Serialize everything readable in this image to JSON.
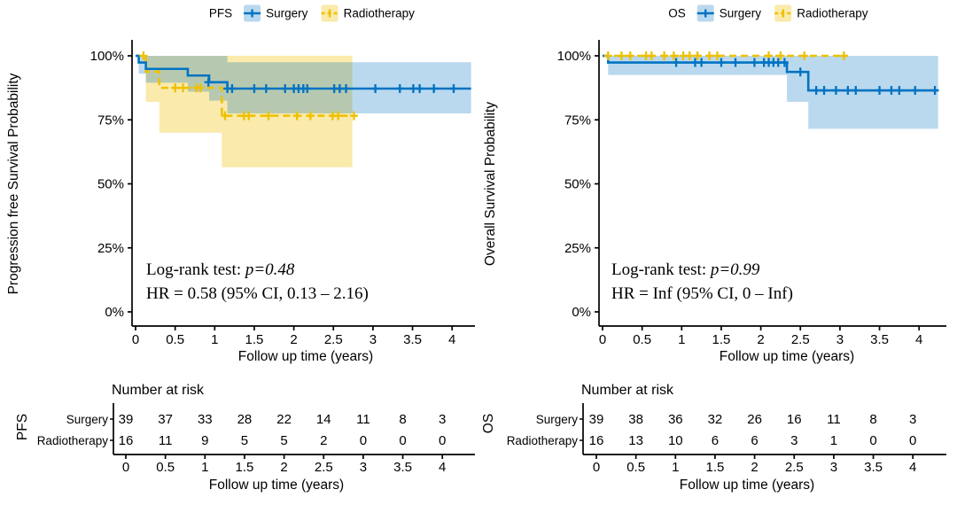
{
  "figure": {
    "background": "#ffffff"
  },
  "palette": {
    "surgery": "#0073C2",
    "radiotherapy": "#EFC000",
    "surgery_fill": "rgba(0,115,194,0.27)",
    "radiotherapy_fill": "rgba(239,192,0,0.33)",
    "axis": "#000000",
    "text": "#000000"
  },
  "chart_data": [
    {
      "type": "line",
      "subtype": "kaplan-meier-step",
      "id": "pfs",
      "legend_title": "PFS",
      "ylabel": "Progression free Survival Probability",
      "xlabel": "Follow up time (years)",
      "xlim": [
        0,
        4.3
      ],
      "ylim": [
        0,
        1
      ],
      "grid": false,
      "legend_position": "top",
      "xticks": [
        0,
        0.5,
        1,
        1.5,
        2,
        2.5,
        3,
        3.5,
        4
      ],
      "xtick_labels": [
        "0",
        "0.5",
        "1",
        "1.5",
        "2",
        "2.5",
        "3",
        "3.5",
        "4"
      ],
      "yticks": [
        0,
        0.25,
        0.5,
        0.75,
        1
      ],
      "ytick_labels": [
        "0%",
        "25%",
        "50%",
        "75%",
        "100%"
      ],
      "annotation": {
        "logrank_prefix": "Log-rank test: ",
        "logrank_p": "p=0.48",
        "hr": "HR = 0.58 (95% CI, 0.13 – 2.16)"
      },
      "series": [
        {
          "name": "Surgery",
          "color_key": "surgery",
          "dashed": false,
          "steps": [
            [
              0,
              1
            ],
            [
              0.04,
              0.974
            ],
            [
              0.13,
              0.949
            ],
            [
              0.66,
              0.923
            ],
            [
              0.93,
              0.897
            ],
            [
              1.16,
              0.872
            ]
          ],
          "end_time": 4.24,
          "censors": [
            [
              0.92,
              0.897
            ],
            [
              1.16,
              0.872
            ],
            [
              1.22,
              0.872
            ],
            [
              1.5,
              0.872
            ],
            [
              1.65,
              0.872
            ],
            [
              1.89,
              0.872
            ],
            [
              2.0,
              0.872
            ],
            [
              2.06,
              0.872
            ],
            [
              2.12,
              0.872
            ],
            [
              2.17,
              0.872
            ],
            [
              2.51,
              0.872
            ],
            [
              2.58,
              0.872
            ],
            [
              2.66,
              0.872
            ],
            [
              3.03,
              0.872
            ],
            [
              3.34,
              0.872
            ],
            [
              3.51,
              0.872
            ],
            [
              3.59,
              0.872
            ],
            [
              3.77,
              0.872
            ],
            [
              4.02,
              0.872
            ]
          ],
          "ci": [
            [
              0.04,
              0.93,
              1
            ],
            [
              0.13,
              0.895,
              1
            ],
            [
              0.66,
              0.86,
              1
            ],
            [
              0.93,
              0.825,
              1
            ],
            [
              1.16,
              0.775,
              0.975
            ]
          ],
          "ci_end": 4.24
        },
        {
          "name": "Radiotherapy",
          "color_key": "radiotherapy",
          "dashed": true,
          "steps": [
            [
              0,
              1
            ],
            [
              0.13,
              0.938
            ],
            [
              0.3,
              0.875
            ],
            [
              1.09,
              0.766
            ]
          ],
          "end_time": 2.76,
          "censors": [
            [
              0.1,
              1
            ],
            [
              0.5,
              0.875
            ],
            [
              0.6,
              0.875
            ],
            [
              0.77,
              0.875
            ],
            [
              0.82,
              0.875
            ],
            [
              1.13,
              0.766
            ],
            [
              1.37,
              0.766
            ],
            [
              1.43,
              0.766
            ],
            [
              1.68,
              0.766
            ],
            [
              2.04,
              0.766
            ],
            [
              2.21,
              0.766
            ],
            [
              2.49,
              0.766
            ],
            [
              2.56,
              0.766
            ],
            [
              2.76,
              0.766
            ]
          ],
          "ci": [
            [
              0.13,
              0.82,
              1
            ],
            [
              0.3,
              0.7,
              1
            ],
            [
              1.09,
              0.565,
              1
            ]
          ],
          "ci_end": 2.74
        }
      ],
      "risk_table": {
        "title": "Number at risk",
        "group_label": "PFS",
        "xlabel": "Follow up time (years)",
        "xtick_labels": [
          "0",
          "0.5",
          "1",
          "1.5",
          "2",
          "2.5",
          "3",
          "3.5",
          "4"
        ],
        "rows": [
          {
            "name": "Surgery",
            "color_key": "surgery",
            "counts": [
              "39",
              "37",
              "33",
              "28",
              "22",
              "14",
              "11",
              "8",
              "3"
            ]
          },
          {
            "name": "Radiotherapy",
            "color_key": "radiotherapy",
            "counts": [
              "16",
              "11",
              "9",
              "5",
              "5",
              "2",
              "0",
              "0",
              "0"
            ]
          }
        ]
      }
    },
    {
      "type": "line",
      "subtype": "kaplan-meier-step",
      "id": "os",
      "legend_title": "OS",
      "ylabel": "Overall Survival Probability",
      "xlabel": "Follow up time (years)",
      "xlim": [
        0,
        4.3
      ],
      "ylim": [
        0,
        1
      ],
      "grid": false,
      "legend_position": "top",
      "xticks": [
        0,
        0.5,
        1,
        1.5,
        2,
        2.5,
        3,
        3.5,
        4
      ],
      "xtick_labels": [
        "0",
        "0.5",
        "1",
        "1.5",
        "2",
        "2.5",
        "3",
        "3.5",
        "4"
      ],
      "yticks": [
        0,
        0.25,
        0.5,
        0.75,
        1
      ],
      "ytick_labels": [
        "0%",
        "25%",
        "50%",
        "75%",
        "100%"
      ],
      "annotation": {
        "logrank_prefix": "Log-rank test: ",
        "logrank_p": "p=0.99",
        "hr": "HR =  Inf (95% CI, 0 – Inf)"
      },
      "series": [
        {
          "name": "Surgery",
          "color_key": "surgery",
          "dashed": false,
          "steps": [
            [
              0,
              1
            ],
            [
              0.07,
              0.974
            ],
            [
              2.33,
              0.937
            ],
            [
              2.6,
              0.865
            ]
          ],
          "end_time": 4.24,
          "censors": [
            [
              0.93,
              0.974
            ],
            [
              1.17,
              0.974
            ],
            [
              1.25,
              0.974
            ],
            [
              1.5,
              0.974
            ],
            [
              1.68,
              0.974
            ],
            [
              1.92,
              0.974
            ],
            [
              2.04,
              0.974
            ],
            [
              2.1,
              0.974
            ],
            [
              2.16,
              0.974
            ],
            [
              2.22,
              0.974
            ],
            [
              2.3,
              0.974
            ],
            [
              2.5,
              0.937
            ],
            [
              2.7,
              0.865
            ],
            [
              2.8,
              0.865
            ],
            [
              2.95,
              0.865
            ],
            [
              3.1,
              0.865
            ],
            [
              3.2,
              0.865
            ],
            [
              3.5,
              0.865
            ],
            [
              3.65,
              0.865
            ],
            [
              3.75,
              0.865
            ],
            [
              3.95,
              0.865
            ],
            [
              4.2,
              0.865
            ]
          ],
          "ci": [
            [
              0.07,
              0.925,
              1
            ],
            [
              2.33,
              0.82,
              1
            ],
            [
              2.6,
              0.715,
              1
            ]
          ],
          "ci_end": 4.24
        },
        {
          "name": "Radiotherapy",
          "color_key": "radiotherapy",
          "dashed": true,
          "steps": [
            [
              0,
              1
            ]
          ],
          "end_time": 3.1,
          "censors": [
            [
              0.07,
              1
            ],
            [
              0.24,
              1
            ],
            [
              0.35,
              1
            ],
            [
              0.55,
              1
            ],
            [
              0.62,
              1
            ],
            [
              0.78,
              1
            ],
            [
              0.9,
              1
            ],
            [
              1.02,
              1
            ],
            [
              1.1,
              1
            ],
            [
              1.2,
              1
            ],
            [
              1.35,
              1
            ],
            [
              1.45,
              1
            ],
            [
              2.1,
              1
            ],
            [
              2.25,
              1
            ],
            [
              2.55,
              1
            ],
            [
              3.05,
              1
            ]
          ],
          "ci": [],
          "ci_end": 3.1
        }
      ],
      "risk_table": {
        "title": "Number at risk",
        "group_label": "OS",
        "xlabel": "Follow up time (years)",
        "xtick_labels": [
          "0",
          "0.5",
          "1",
          "1.5",
          "2",
          "2.5",
          "3",
          "3.5",
          "4"
        ],
        "rows": [
          {
            "name": "Surgery",
            "color_key": "surgery",
            "counts": [
              "39",
              "38",
              "36",
              "32",
              "26",
              "16",
              "11",
              "8",
              "3"
            ]
          },
          {
            "name": "Radiotherapy",
            "color_key": "radiotherapy",
            "counts": [
              "16",
              "13",
              "10",
              "6",
              "6",
              "3",
              "1",
              "0",
              "0"
            ]
          }
        ]
      }
    }
  ]
}
